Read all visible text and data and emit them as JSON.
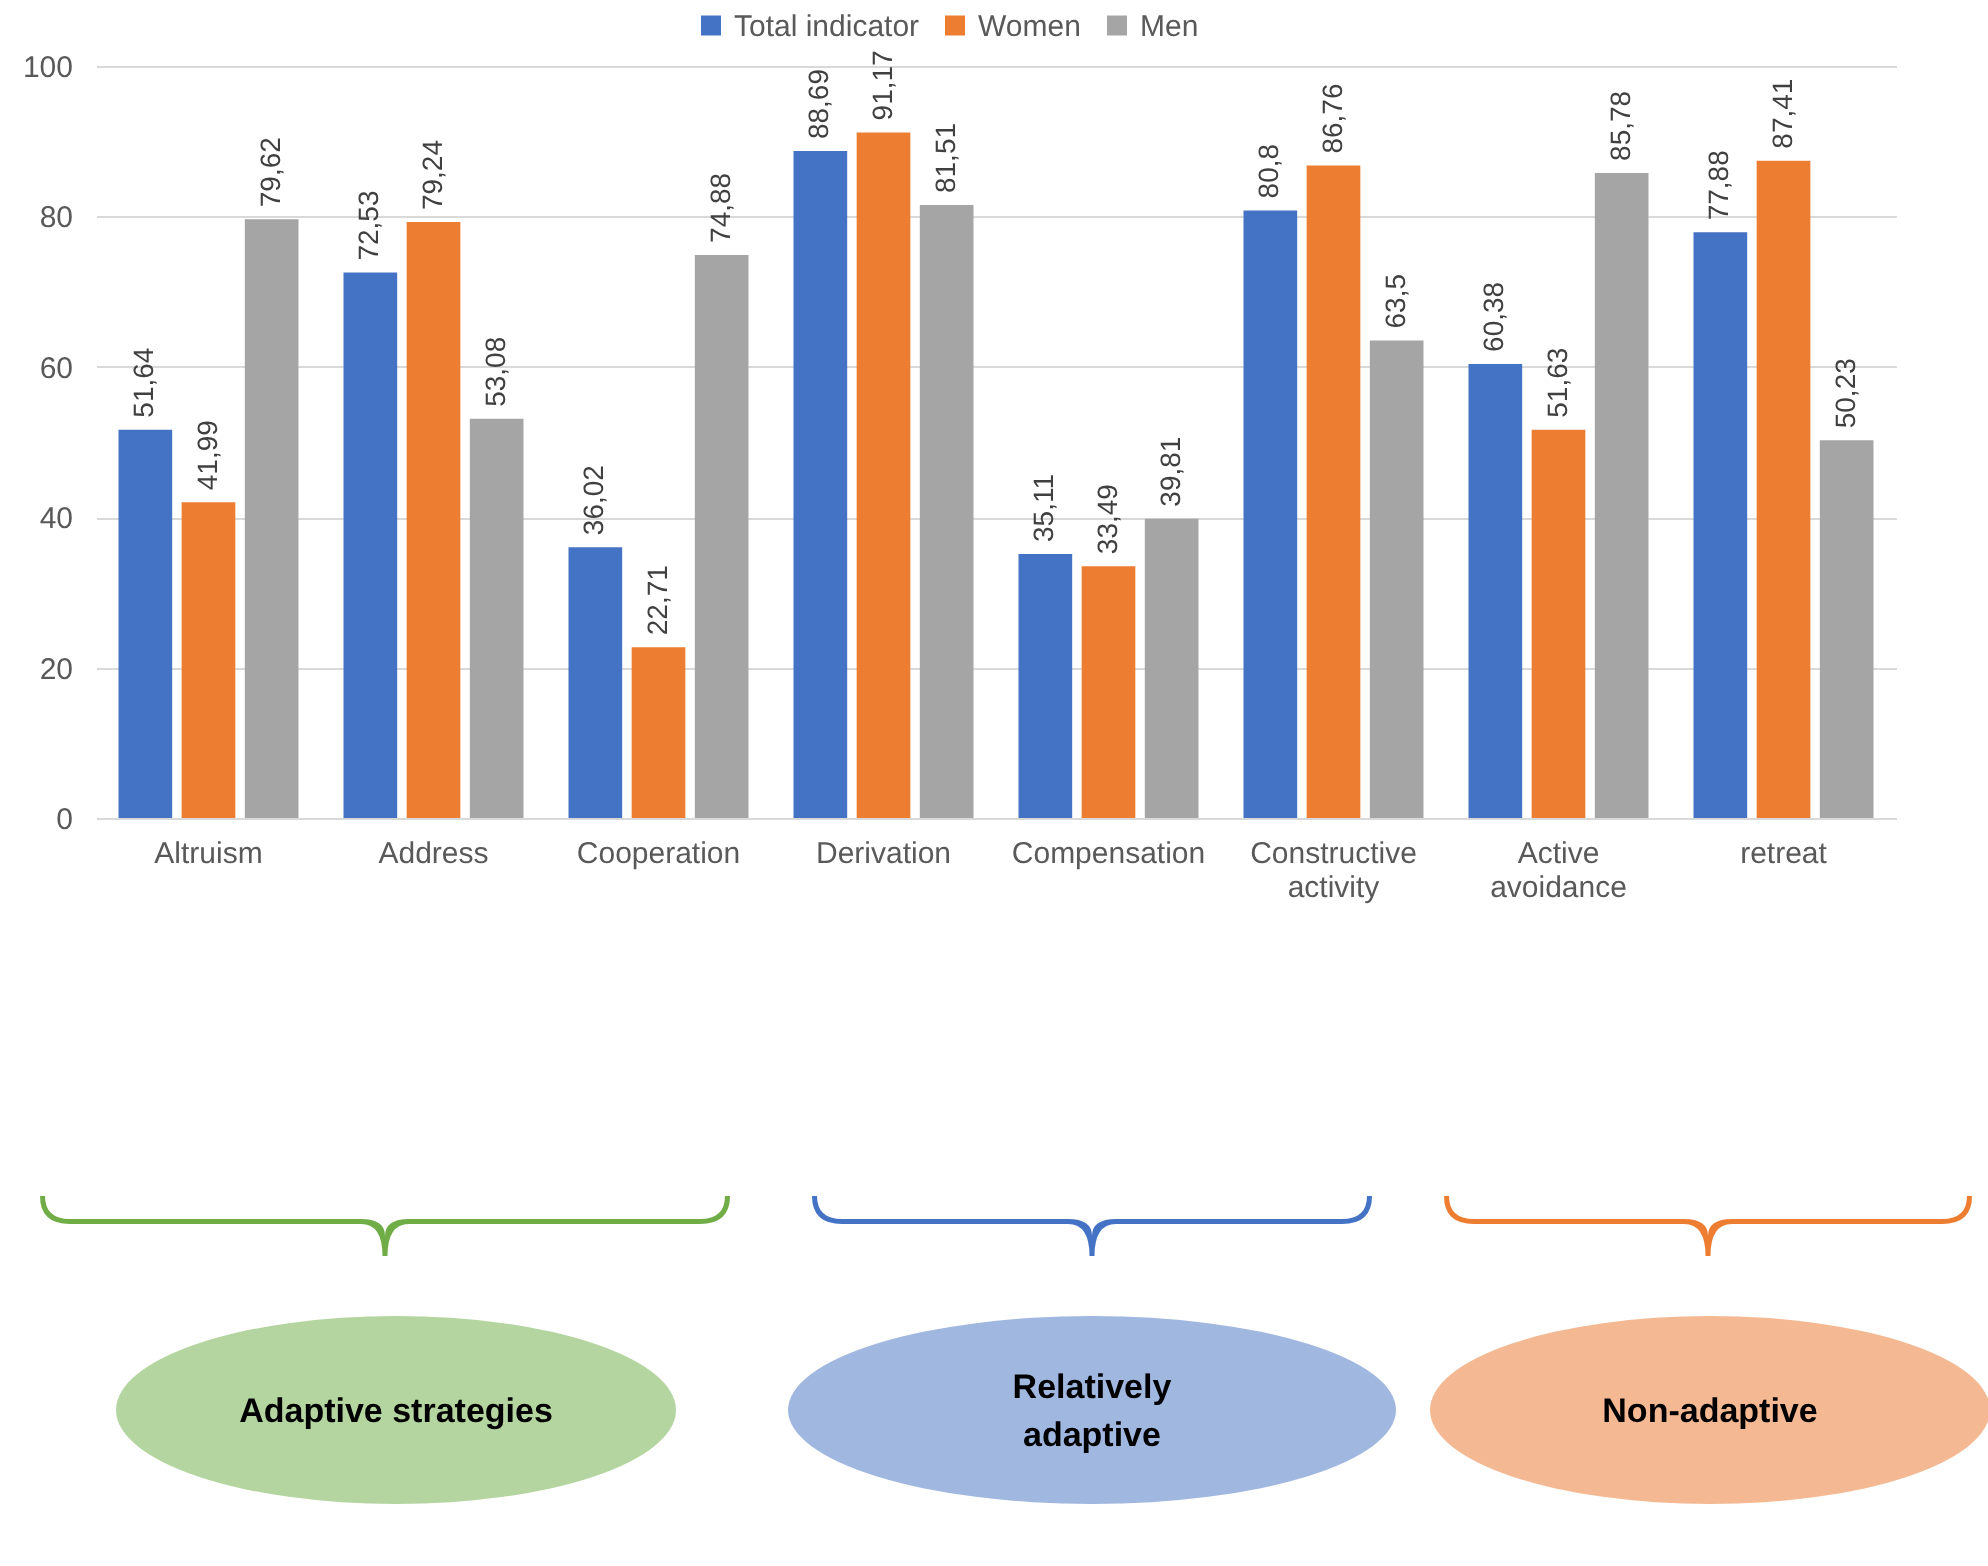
{
  "chart_data": {
    "type": "bar",
    "categories": [
      "Altruism",
      "Address",
      "Cooperation",
      "Derivation",
      "Compensation",
      "Constructive activity",
      "Active avoidance",
      "retreat"
    ],
    "series": [
      {
        "name": "Total indicator",
        "color": "#4472c4",
        "values": [
          51.64,
          72.53,
          36.02,
          88.69,
          35.11,
          80.8,
          60.38,
          77.88
        ],
        "value_labels": [
          "51,64",
          "72,53",
          "36,02",
          "88,69",
          "35,11",
          "80,8",
          "60,38",
          "77,88"
        ]
      },
      {
        "name": "Women",
        "color": "#ed7d31",
        "values": [
          41.99,
          79.24,
          22.71,
          91.17,
          33.49,
          86.76,
          51.63,
          87.41
        ],
        "value_labels": [
          "41,99",
          "79,24",
          "22,71",
          "91,17",
          "33,49",
          "86,76",
          "51,63",
          "87,41"
        ]
      },
      {
        "name": "Men",
        "color": "#a5a5a5",
        "values": [
          79.62,
          53.08,
          74.88,
          81.51,
          39.81,
          63.5,
          85.78,
          50.23
        ],
        "value_labels": [
          "79,62",
          "53,08",
          "74,88",
          "81,51",
          "39,81",
          "63,5",
          "85,78",
          "50,23"
        ]
      }
    ],
    "ylim": [
      0,
      100
    ],
    "yticks": [
      0,
      20,
      40,
      60,
      80,
      100
    ],
    "grid": "y",
    "legend": "top",
    "annotations": [
      "Adaptive strategies",
      "Relatively adaptive",
      "Non-adaptive"
    ]
  }
}
